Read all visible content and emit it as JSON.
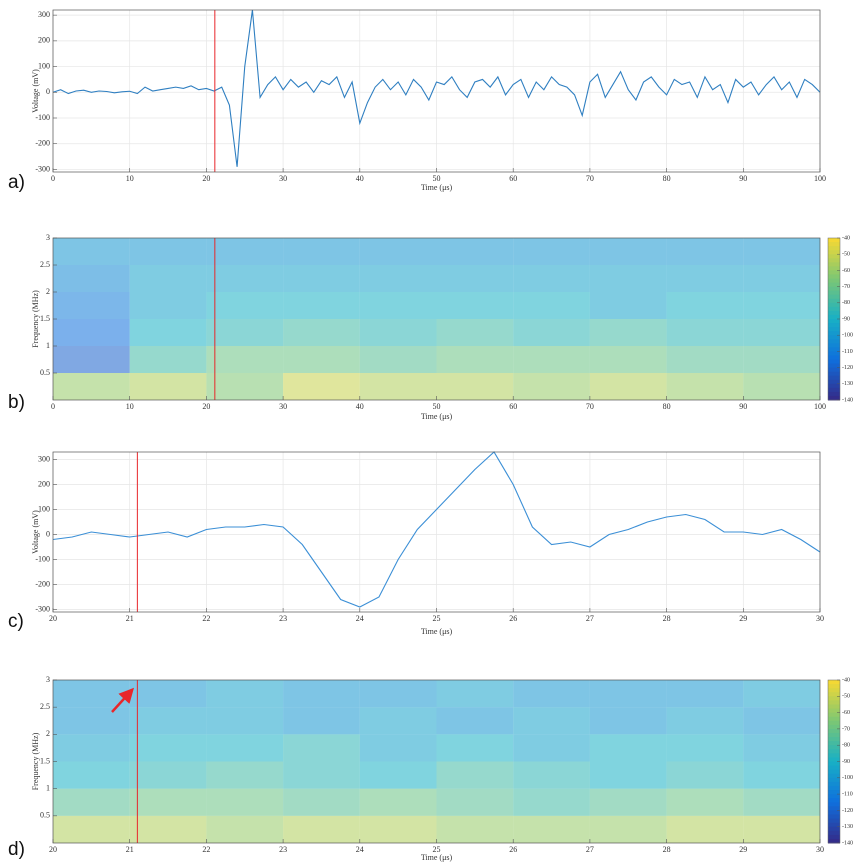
{
  "chart_data": [
    {
      "type": "line",
      "panel_label": "a)",
      "xlabel": "Time (μs)",
      "ylabel": "Voltage (mV)",
      "xlim": [
        0,
        100
      ],
      "ylim": [
        -310,
        320
      ],
      "xticks": [
        0,
        10,
        20,
        30,
        40,
        50,
        60,
        70,
        80,
        90,
        100
      ],
      "yticks": [
        -300,
        -200,
        -100,
        0,
        100,
        200,
        300
      ],
      "grid": true,
      "marker_x": 21.1,
      "marker_color": "#e8262a",
      "series": [
        {
          "color": "#2f7fc1",
          "x": [
            0,
            1,
            2,
            3,
            4,
            5,
            6,
            7,
            8,
            9,
            10,
            11,
            12,
            13,
            14,
            15,
            16,
            17,
            18,
            19,
            20,
            21,
            22,
            23,
            24,
            25,
            26,
            27,
            28,
            29,
            30,
            31,
            32,
            33,
            34,
            35,
            36,
            37,
            38,
            39,
            40,
            41,
            42,
            43,
            44,
            45,
            46,
            47,
            48,
            49,
            50,
            51,
            52,
            53,
            54,
            55,
            56,
            57,
            58,
            59,
            60,
            61,
            62,
            63,
            64,
            65,
            66,
            67,
            68,
            69,
            70,
            71,
            72,
            73,
            74,
            75,
            76,
            77,
            78,
            79,
            80,
            81,
            82,
            83,
            84,
            85,
            86,
            87,
            88,
            89,
            90,
            91,
            92,
            93,
            94,
            95,
            96,
            97,
            98,
            99,
            100
          ],
          "values": [
            0,
            10,
            -5,
            5,
            8,
            0,
            5,
            3,
            -2,
            2,
            4,
            -5,
            20,
            5,
            10,
            15,
            20,
            15,
            25,
            10,
            15,
            5,
            20,
            -50,
            -290,
            100,
            320,
            -20,
            30,
            60,
            10,
            50,
            20,
            40,
            0,
            45,
            30,
            60,
            -20,
            40,
            -120,
            -40,
            20,
            50,
            10,
            40,
            -10,
            50,
            20,
            -30,
            40,
            30,
            60,
            10,
            -20,
            40,
            50,
            20,
            60,
            -10,
            30,
            50,
            -20,
            40,
            10,
            60,
            30,
            20,
            -10,
            -90,
            40,
            70,
            -20,
            30,
            80,
            10,
            -30,
            40,
            60,
            20,
            -10,
            50,
            30,
            40,
            -20,
            60,
            10,
            30,
            -40,
            50,
            20,
            40,
            -10,
            30,
            60,
            10,
            40,
            -20,
            50,
            30,
            0
          ]
        }
      ]
    },
    {
      "type": "heatmap",
      "panel_label": "b)",
      "xlabel": "Time (μs)",
      "ylabel": "Frequency (MHz)",
      "xlim": [
        0,
        100
      ],
      "ylim": [
        0,
        3
      ],
      "xticks": [
        0,
        10,
        20,
        30,
        40,
        50,
        60,
        70,
        80,
        90,
        100
      ],
      "yticks": [
        0.5,
        1,
        1.5,
        2,
        2.5,
        3
      ],
      "marker_x": 21.1,
      "marker_color": "#e8262a",
      "clim": [
        -140,
        -40
      ],
      "cticks": [
        -40,
        -50,
        -60,
        -70,
        -80,
        -90,
        -100,
        -110,
        -120,
        -130,
        -140
      ],
      "colormap": [
        "#352a87",
        "#0f6fdd",
        "#18b0c5",
        "#7dc773",
        "#f9d932"
      ],
      "xbins": [
        0,
        10,
        20,
        30,
        40,
        50,
        60,
        70,
        80,
        90,
        100
      ],
      "ybins": [
        0,
        0.5,
        1,
        1.5,
        2,
        2.5,
        3
      ],
      "z": [
        [
          -60,
          -55,
          -65,
          -50,
          -55,
          -55,
          -60,
          -55,
          -60,
          -65
        ],
        [
          -120,
          -80,
          -70,
          -70,
          -75,
          -70,
          -70,
          -70,
          -75,
          -75
        ],
        [
          -115,
          -90,
          -85,
          -80,
          -85,
          -80,
          -85,
          -80,
          -85,
          -85
        ],
        [
          -110,
          -95,
          -90,
          -90,
          -90,
          -90,
          -90,
          -95,
          -90,
          -90
        ],
        [
          -105,
          -95,
          -95,
          -95,
          -95,
          -95,
          -95,
          -95,
          -95,
          -95
        ],
        [
          -100,
          -100,
          -100,
          -100,
          -100,
          -100,
          -100,
          -100,
          -100,
          -100
        ]
      ]
    },
    {
      "type": "line",
      "panel_label": "c)",
      "xlabel": "Time (μs)",
      "ylabel": "Voltage (mV)",
      "xlim": [
        20,
        30
      ],
      "ylim": [
        -310,
        330
      ],
      "xticks": [
        20,
        21,
        22,
        23,
        24,
        25,
        26,
        27,
        28,
        29,
        30
      ],
      "yticks": [
        -300,
        -200,
        -100,
        0,
        100,
        200,
        300
      ],
      "grid": true,
      "marker_x": 21.1,
      "marker_color": "#e8262a",
      "series": [
        {
          "color": "#3b8fd6",
          "x": [
            20,
            20.25,
            20.5,
            20.75,
            21,
            21.25,
            21.5,
            21.75,
            22,
            22.25,
            22.5,
            22.75,
            23,
            23.25,
            23.5,
            23.75,
            24,
            24.25,
            24.5,
            24.75,
            25,
            25.25,
            25.5,
            25.75,
            26,
            26.25,
            26.5,
            26.75,
            27,
            27.25,
            27.5,
            27.75,
            28,
            28.25,
            28.5,
            28.75,
            29,
            29.25,
            29.5,
            29.75,
            30
          ],
          "values": [
            -20,
            -10,
            10,
            0,
            -10,
            0,
            10,
            -10,
            20,
            30,
            30,
            40,
            30,
            -40,
            -150,
            -260,
            -290,
            -250,
            -100,
            20,
            100,
            180,
            260,
            330,
            200,
            30,
            -40,
            -30,
            -50,
            0,
            20,
            50,
            70,
            80,
            60,
            10,
            10,
            0,
            20,
            -20,
            -70
          ]
        }
      ]
    },
    {
      "type": "heatmap",
      "panel_label": "d)",
      "xlabel": "Time (μs)",
      "ylabel": "Frequency (MHz)",
      "xlim": [
        20,
        30
      ],
      "ylim": [
        0,
        3
      ],
      "xticks": [
        20,
        21,
        22,
        23,
        24,
        25,
        26,
        27,
        28,
        29,
        30
      ],
      "yticks": [
        0.5,
        1,
        1.5,
        2,
        2.5,
        3
      ],
      "marker_x": 21.1,
      "marker_color": "#e8262a",
      "clim": [
        -140,
        -40
      ],
      "cticks": [
        -40,
        -50,
        -60,
        -70,
        -80,
        -90,
        -100,
        -110,
        -120,
        -130,
        -140
      ],
      "colormap": [
        "#352a87",
        "#0f6fdd",
        "#18b0c5",
        "#7dc773",
        "#f9d932"
      ],
      "xbins": [
        20,
        21,
        22,
        23,
        24,
        25,
        26,
        27,
        28,
        29,
        30
      ],
      "ybins": [
        0,
        0.5,
        1,
        1.5,
        2,
        2.5,
        3
      ],
      "z": [
        [
          -55,
          -55,
          -60,
          -55,
          -55,
          -60,
          -60,
          -60,
          -55,
          -55
        ],
        [
          -75,
          -70,
          -70,
          -75,
          -70,
          -75,
          -80,
          -75,
          -70,
          -75
        ],
        [
          -90,
          -85,
          -80,
          -85,
          -90,
          -80,
          -85,
          -90,
          -85,
          -90
        ],
        [
          -95,
          -90,
          -90,
          -85,
          -95,
          -90,
          -95,
          -90,
          -90,
          -95
        ],
        [
          -100,
          -95,
          -95,
          -100,
          -95,
          -100,
          -95,
          -100,
          -95,
          -100
        ],
        [
          -100,
          -100,
          -95,
          -100,
          -100,
          -95,
          -100,
          -100,
          -100,
          -95
        ]
      ]
    }
  ]
}
